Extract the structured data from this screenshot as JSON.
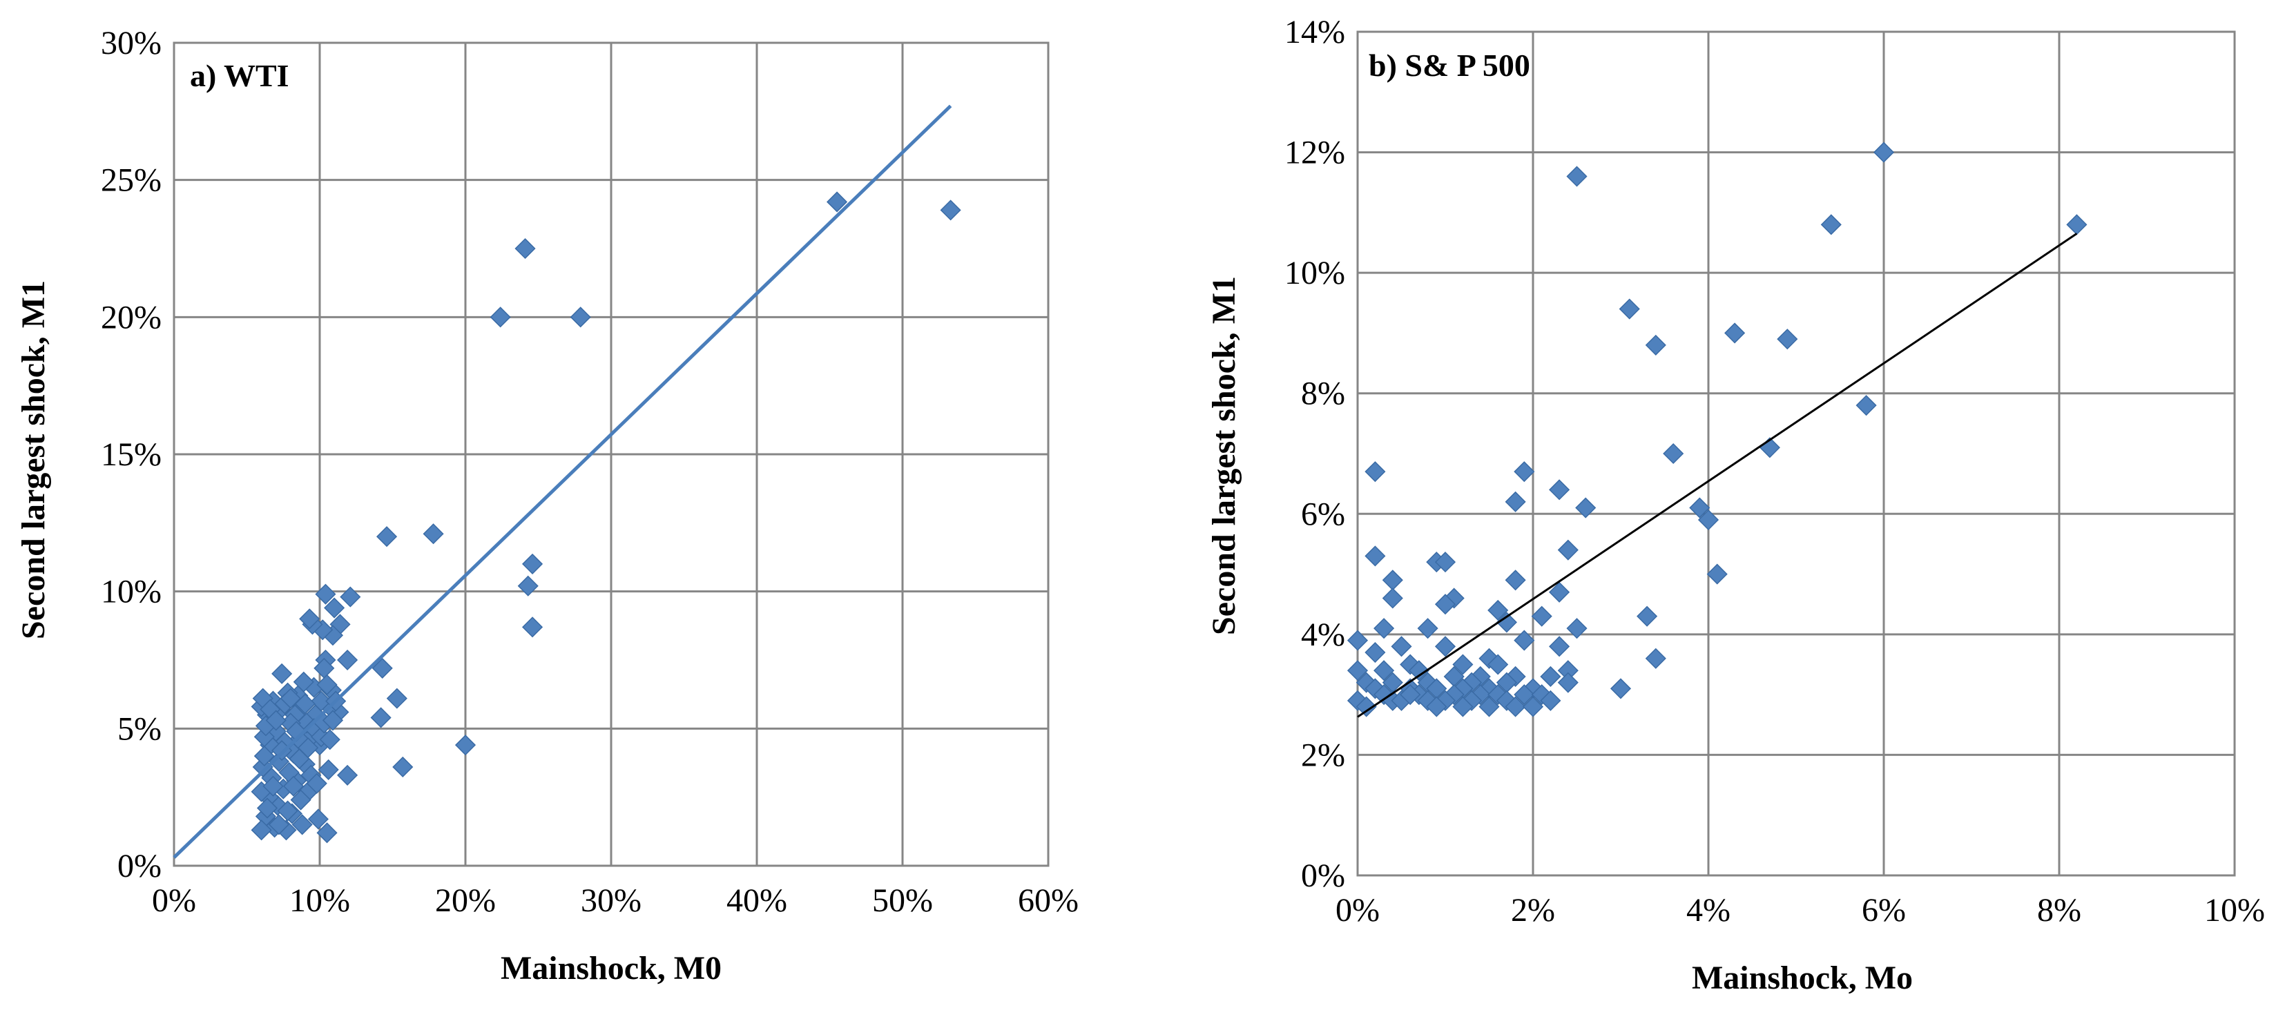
{
  "colors": {
    "marker": "#4F81BD",
    "marker_stroke": "#3A6BA5",
    "trend_a": "#4A7EBB",
    "trend_b": "#000000",
    "grid": "#868686",
    "frame": "#868686"
  },
  "chart_data": [
    {
      "type": "scatter",
      "title": "a) WTI",
      "xlabel": "Mainshock, M0",
      "ylabel": "Second largest shock, M1",
      "xlim": [
        0,
        0.6
      ],
      "ylim": [
        0,
        0.3
      ],
      "xticks": [
        0,
        0.1,
        0.2,
        0.3,
        0.4,
        0.5,
        0.6
      ],
      "yticks": [
        0,
        0.05,
        0.1,
        0.15,
        0.2,
        0.25,
        0.3
      ],
      "xtick_labels": [
        "0%",
        "10%",
        "20%",
        "30%",
        "40%",
        "50%",
        "60%"
      ],
      "ytick_labels": [
        "0%",
        "5%",
        "10%",
        "15%",
        "20%",
        "25%",
        "30%"
      ],
      "grid": true,
      "trendline": {
        "x": [
          0,
          0.533
        ],
        "y": [
          0.003,
          0.277
        ]
      },
      "points": [
        [
          0.533,
          0.239
        ],
        [
          0.455,
          0.242
        ],
        [
          0.241,
          0.225
        ],
        [
          0.224,
          0.2
        ],
        [
          0.279,
          0.2
        ],
        [
          0.146,
          0.12
        ],
        [
          0.178,
          0.121
        ],
        [
          0.246,
          0.11
        ],
        [
          0.243,
          0.102
        ],
        [
          0.246,
          0.087
        ],
        [
          0.2,
          0.044
        ],
        [
          0.157,
          0.036
        ],
        [
          0.153,
          0.061
        ],
        [
          0.142,
          0.054
        ],
        [
          0.143,
          0.072
        ],
        [
          0.121,
          0.098
        ],
        [
          0.119,
          0.075
        ],
        [
          0.119,
          0.033
        ],
        [
          0.114,
          0.088
        ],
        [
          0.113,
          0.056
        ],
        [
          0.11,
          0.094
        ],
        [
          0.109,
          0.084
        ],
        [
          0.108,
          0.064
        ],
        [
          0.107,
          0.058
        ],
        [
          0.106,
          0.035
        ],
        [
          0.105,
          0.012
        ],
        [
          0.104,
          0.099
        ],
        [
          0.104,
          0.075
        ],
        [
          0.103,
          0.072
        ],
        [
          0.102,
          0.086
        ],
        [
          0.101,
          0.06
        ],
        [
          0.1,
          0.044
        ],
        [
          0.099,
          0.017
        ],
        [
          0.097,
          0.055
        ],
        [
          0.096,
          0.065
        ],
        [
          0.095,
          0.088
        ],
        [
          0.094,
          0.047
        ],
        [
          0.093,
          0.09
        ],
        [
          0.092,
          0.027
        ],
        [
          0.091,
          0.052
        ],
        [
          0.09,
          0.037
        ],
        [
          0.089,
          0.067
        ],
        [
          0.088,
          0.058
        ],
        [
          0.087,
          0.024
        ],
        [
          0.086,
          0.046
        ],
        [
          0.085,
          0.062
        ],
        [
          0.084,
          0.031
        ],
        [
          0.083,
          0.055
        ],
        [
          0.082,
          0.041
        ],
        [
          0.081,
          0.019
        ],
        [
          0.08,
          0.052
        ],
        [
          0.079,
          0.034
        ],
        [
          0.078,
          0.063
        ],
        [
          0.077,
          0.013
        ],
        [
          0.076,
          0.045
        ],
        [
          0.075,
          0.028
        ],
        [
          0.074,
          0.07
        ],
        [
          0.073,
          0.057
        ],
        [
          0.072,
          0.038
        ],
        [
          0.071,
          0.022
        ],
        [
          0.07,
          0.049
        ],
        [
          0.069,
          0.014
        ],
        [
          0.068,
          0.06
        ],
        [
          0.067,
          0.032
        ],
        [
          0.066,
          0.044
        ],
        [
          0.065,
          0.025
        ],
        [
          0.064,
          0.055
        ],
        [
          0.063,
          0.018
        ],
        [
          0.062,
          0.047
        ],
        [
          0.061,
          0.036
        ],
        [
          0.06,
          0.058
        ],
        [
          0.06,
          0.027
        ],
        [
          0.06,
          0.013
        ],
        [
          0.061,
          0.061
        ],
        [
          0.062,
          0.04
        ],
        [
          0.063,
          0.051
        ],
        [
          0.064,
          0.021
        ],
        [
          0.066,
          0.057
        ],
        [
          0.068,
          0.029
        ],
        [
          0.07,
          0.053
        ],
        [
          0.072,
          0.015
        ],
        [
          0.074,
          0.042
        ],
        [
          0.076,
          0.059
        ],
        [
          0.078,
          0.02
        ],
        [
          0.08,
          0.061
        ],
        [
          0.082,
          0.029
        ],
        [
          0.084,
          0.049
        ],
        [
          0.086,
          0.039
        ],
        [
          0.088,
          0.015
        ],
        [
          0.09,
          0.059
        ],
        [
          0.092,
          0.043
        ],
        [
          0.094,
          0.033
        ],
        [
          0.096,
          0.05
        ],
        [
          0.098,
          0.03
        ],
        [
          0.101,
          0.047
        ],
        [
          0.103,
          0.052
        ],
        [
          0.105,
          0.066
        ],
        [
          0.107,
          0.046
        ],
        [
          0.109,
          0.053
        ],
        [
          0.111,
          0.06
        ]
      ]
    },
    {
      "type": "scatter",
      "title": "b) S& P 500",
      "xlabel": "Mainshock, Mo",
      "ylabel": "Second largest shock, M1",
      "xlim": [
        0,
        0.1
      ],
      "ylim": [
        0,
        0.14
      ],
      "xticks": [
        0,
        0.02,
        0.04,
        0.06,
        0.08,
        0.1
      ],
      "yticks": [
        0,
        0.02,
        0.04,
        0.06,
        0.08,
        0.1,
        0.12,
        0.14
      ],
      "xtick_labels": [
        "0%",
        "2%",
        "4%",
        "6%",
        "8%",
        "10%"
      ],
      "ytick_labels": [
        "0%",
        "2%",
        "4%",
        "6%",
        "8%",
        "10%",
        "12%",
        "14%"
      ],
      "grid": true,
      "trendline": {
        "x": [
          0,
          0.082
        ],
        "y": [
          0.0263,
          0.1065
        ]
      },
      "points": [
        [
          0.06,
          0.12
        ],
        [
          0.025,
          0.116
        ],
        [
          0.082,
          0.108
        ],
        [
          0.054,
          0.108
        ],
        [
          0.031,
          0.094
        ],
        [
          0.043,
          0.09
        ],
        [
          0.049,
          0.089
        ],
        [
          0.034,
          0.088
        ],
        [
          0.058,
          0.078
        ],
        [
          0.036,
          0.07
        ],
        [
          0.047,
          0.071
        ],
        [
          0.002,
          0.067
        ],
        [
          0.019,
          0.067
        ],
        [
          0.023,
          0.064
        ],
        [
          0.018,
          0.062
        ],
        [
          0.026,
          0.061
        ],
        [
          0.039,
          0.061
        ],
        [
          0.04,
          0.059
        ],
        [
          0.024,
          0.054
        ],
        [
          0.002,
          0.053
        ],
        [
          0.009,
          0.052
        ],
        [
          0.01,
          0.052
        ],
        [
          0.041,
          0.05
        ],
        [
          0.004,
          0.049
        ],
        [
          0.018,
          0.049
        ],
        [
          0.004,
          0.046
        ],
        [
          0.011,
          0.046
        ],
        [
          0.01,
          0.045
        ],
        [
          0.023,
          0.047
        ],
        [
          0.033,
          0.043
        ],
        [
          0.016,
          0.044
        ],
        [
          0.021,
          0.043
        ],
        [
          0.003,
          0.041
        ],
        [
          0.008,
          0.041
        ],
        [
          0.017,
          0.042
        ],
        [
          0.025,
          0.041
        ],
        [
          0.0,
          0.039
        ],
        [
          0.005,
          0.038
        ],
        [
          0.019,
          0.039
        ],
        [
          0.023,
          0.038
        ],
        [
          0.034,
          0.036
        ],
        [
          0.01,
          0.038
        ],
        [
          0.015,
          0.036
        ],
        [
          0.002,
          0.037
        ],
        [
          0.006,
          0.035
        ],
        [
          0.012,
          0.035
        ],
        [
          0.016,
          0.035
        ],
        [
          0.024,
          0.034
        ],
        [
          0.0,
          0.034
        ],
        [
          0.003,
          0.034
        ],
        [
          0.007,
          0.034
        ],
        [
          0.011,
          0.033
        ],
        [
          0.014,
          0.033
        ],
        [
          0.018,
          0.033
        ],
        [
          0.022,
          0.033
        ],
        [
          0.001,
          0.032
        ],
        [
          0.004,
          0.032
        ],
        [
          0.008,
          0.032
        ],
        [
          0.013,
          0.032
        ],
        [
          0.017,
          0.032
        ],
        [
          0.024,
          0.032
        ],
        [
          0.002,
          0.031
        ],
        [
          0.006,
          0.031
        ],
        [
          0.009,
          0.031
        ],
        [
          0.012,
          0.031
        ],
        [
          0.015,
          0.031
        ],
        [
          0.02,
          0.031
        ],
        [
          0.03,
          0.031
        ],
        [
          0.003,
          0.03
        ],
        [
          0.007,
          0.03
        ],
        [
          0.011,
          0.03
        ],
        [
          0.014,
          0.03
        ],
        [
          0.016,
          0.03
        ],
        [
          0.019,
          0.03
        ],
        [
          0.021,
          0.03
        ],
        [
          0.0,
          0.029
        ],
        [
          0.004,
          0.029
        ],
        [
          0.005,
          0.029
        ],
        [
          0.008,
          0.029
        ],
        [
          0.01,
          0.029
        ],
        [
          0.013,
          0.029
        ],
        [
          0.017,
          0.029
        ],
        [
          0.022,
          0.029
        ],
        [
          0.001,
          0.028
        ],
        [
          0.009,
          0.028
        ],
        [
          0.012,
          0.028
        ],
        [
          0.015,
          0.028
        ],
        [
          0.018,
          0.028
        ],
        [
          0.02,
          0.028
        ],
        [
          0.006,
          0.03
        ]
      ]
    }
  ]
}
